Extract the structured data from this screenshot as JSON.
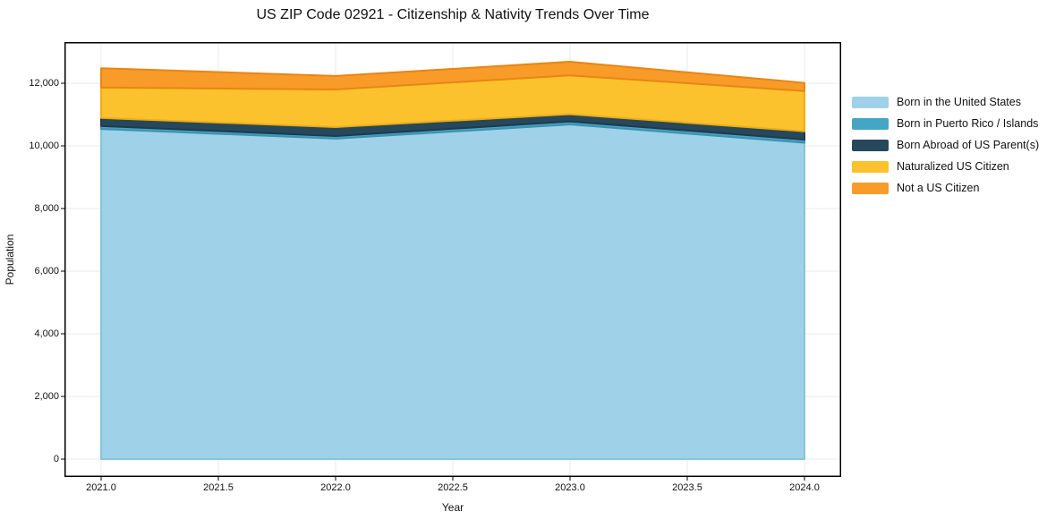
{
  "title": "US ZIP Code 02921 - Citizenship & Nativity Trends Over Time",
  "chart_data": {
    "type": "area",
    "stacked": true,
    "title": "US ZIP Code 02921 - Citizenship & Nativity Trends Over Time",
    "xlabel": "Year",
    "ylabel": "Population",
    "x": [
      2021,
      2022,
      2023,
      2024
    ],
    "series": [
      {
        "name": "Born in the United States",
        "color": "#9fd1e8",
        "edge_color": "#88c3dd",
        "values": [
          10540,
          10230,
          10685,
          10100
        ]
      },
      {
        "name": "Born in Puerto Rico / Islands",
        "color": "#45a5c5",
        "edge_color": "#3b93b1",
        "values": [
          95,
          85,
          95,
          100
        ]
      },
      {
        "name": "Born Abroad of US Parent(s)",
        "color": "#27485c",
        "edge_color": "#1f3a4b",
        "values": [
          255,
          285,
          230,
          265
        ]
      },
      {
        "name": "Naturalized US Citizen",
        "color": "#fcc22d",
        "edge_color": "#ecae14",
        "values": [
          975,
          1200,
          1240,
          1285
        ]
      },
      {
        "name": "Not a US Citizen",
        "color": "#f89b28",
        "edge_color": "#e88614",
        "values": [
          615,
          430,
          435,
          260
        ]
      }
    ],
    "stacked_totals": [
      12480,
      12230,
      12685,
      12010
    ],
    "x_tick_labels": [
      "2021.0",
      "2021.5",
      "2022.0",
      "2022.5",
      "2023.0",
      "2023.5",
      "2024.0"
    ],
    "x_tick_values": [
      2021.0,
      2021.5,
      2022.0,
      2022.5,
      2023.0,
      2023.5,
      2024.0
    ],
    "y_tick_labels": [
      "0",
      "2,000",
      "4,000",
      "6,000",
      "8,000",
      "10,000",
      "12,000"
    ],
    "y_tick_values": [
      0,
      2000,
      4000,
      6000,
      8000,
      10000,
      12000
    ],
    "xlim": [
      2020.84,
      2024.16
    ],
    "ylim": [
      -571,
      13314
    ],
    "grid": true,
    "grid_color": "#ebebeb",
    "frame_color": "#000000",
    "background_color": "#ffffff",
    "legend_position": "right",
    "legend_frame": false
  }
}
